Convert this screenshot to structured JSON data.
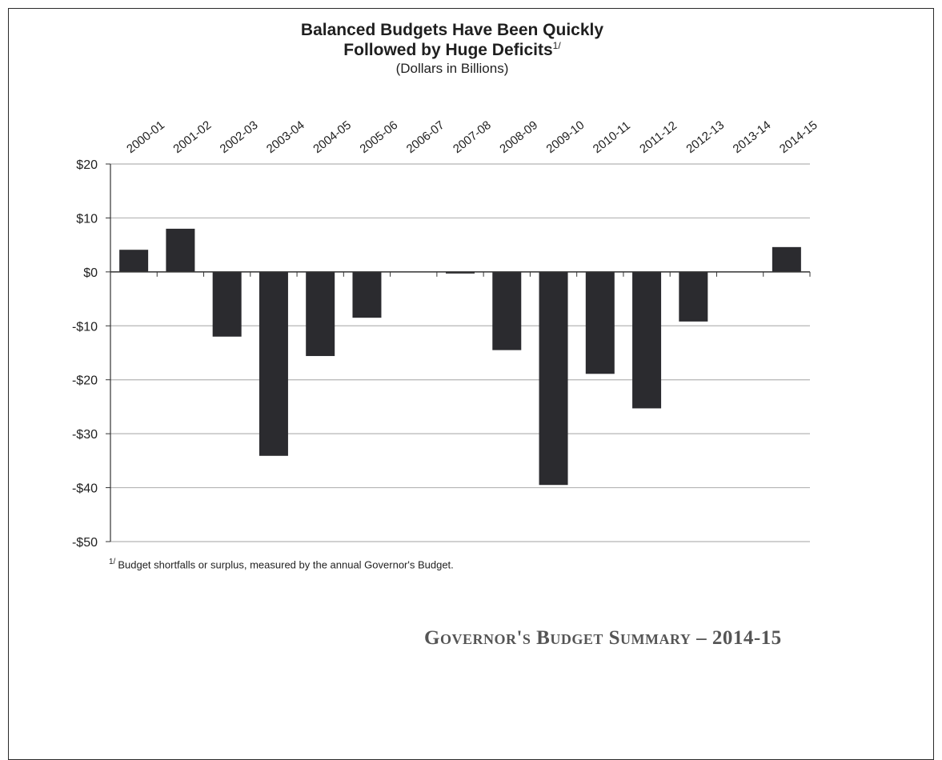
{
  "title_line1": "Balanced Budgets Have Been Quickly",
  "title_line2": "Followed by Huge Deficits",
  "title_footnote_marker": "1/",
  "subtitle": "(Dollars in Billions)",
  "footnote_marker": "1/",
  "footnote_text": "Budget shortfalls or surplus, measured by the annual Governor's Budget.",
  "banner": "Governor's Budget Summary – 2014-15",
  "colors": {
    "bar": "#2b2b2f",
    "grid": "#b5b5b5",
    "axis": "#333333",
    "text": "#1f1f1f"
  },
  "chart_data": {
    "type": "bar",
    "categories": [
      "2000-01",
      "2001-02",
      "2002-03",
      "2003-04",
      "2004-05",
      "2005-06",
      "2006-07",
      "2007-08",
      "2008-09",
      "2009-10",
      "2010-11",
      "2011-12",
      "2012-13",
      "2013-14",
      "2014-15"
    ],
    "values": [
      4.1,
      8.0,
      -12.0,
      -34.1,
      -15.6,
      -8.5,
      0,
      -0.3,
      -14.5,
      -39.5,
      -18.9,
      -25.3,
      -9.2,
      0,
      4.6
    ],
    "ylim": [
      -50,
      20
    ],
    "yticks": [
      20,
      10,
      0,
      -10,
      -20,
      -30,
      -40,
      -50
    ],
    "ytick_labels": [
      "$20",
      "$10",
      "$0",
      "-$10",
      "-$20",
      "-$30",
      "-$40",
      "-$50"
    ],
    "grid": true,
    "xlabel": "",
    "ylabel": ""
  }
}
